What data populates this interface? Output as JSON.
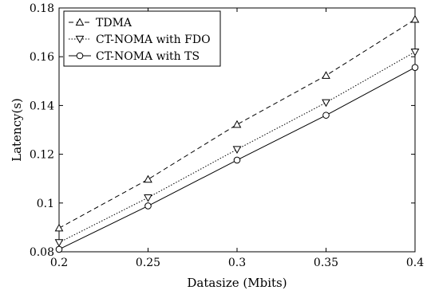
{
  "chart_data": {
    "type": "line",
    "xlabel": "Datasize (Mbits)",
    "ylabel": "Latency(s)",
    "xlim": [
      0.2,
      0.4
    ],
    "ylim": [
      0.08,
      0.18
    ],
    "x": [
      0.2,
      0.25,
      0.3,
      0.35,
      0.4
    ],
    "xticks": [
      "0.2",
      "0.25",
      "0.3",
      "0.35",
      "0.4"
    ],
    "yticks": [
      "0.08",
      "0.1",
      "0.12",
      "0.14",
      "0.16",
      "0.18"
    ],
    "grid": false,
    "legend_position": "top-left",
    "series": [
      {
        "name": "TDMA",
        "values": [
          0.0897,
          0.1097,
          0.1322,
          0.1523,
          0.1753
        ],
        "marker": "triangle-up",
        "line_style": "dashed",
        "color": "#000000"
      },
      {
        "name": "CT-NOMA with FDO",
        "values": [
          0.0838,
          0.1022,
          0.122,
          0.1412,
          0.162
        ],
        "marker": "triangle-down",
        "line_style": "dotted",
        "color": "#000000"
      },
      {
        "name": "CT-NOMA with TS",
        "values": [
          0.081,
          0.0988,
          0.1176,
          0.136,
          0.1556
        ],
        "marker": "circle",
        "line_style": "solid",
        "color": "#000000"
      }
    ]
  }
}
